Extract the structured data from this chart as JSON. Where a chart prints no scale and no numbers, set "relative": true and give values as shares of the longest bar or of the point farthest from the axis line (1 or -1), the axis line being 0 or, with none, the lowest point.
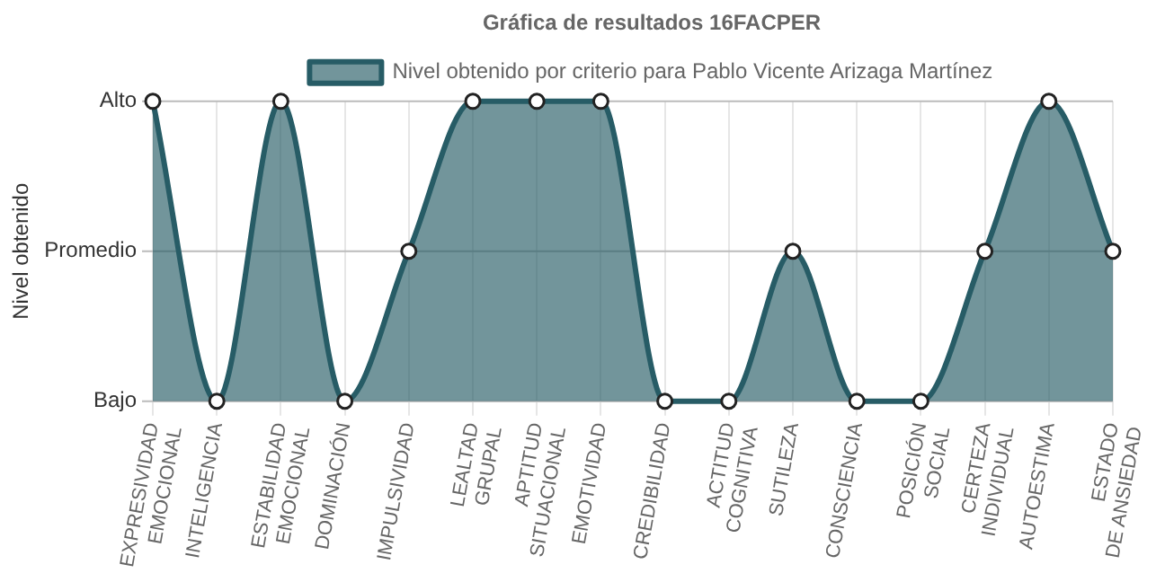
{
  "chart_data": {
    "type": "area",
    "title": "Gráfica de resultados 16FACPER",
    "ylabel": "Nivel obtenido",
    "categories": [
      "EXPRESIVIDAD EMOCIONAL",
      "INTELIGENCIA",
      "ESTABILIDAD EMOCIONAL",
      "DOMINACIÓN",
      "IMPULSIVIDAD",
      "LEALTAD GRUPAL",
      "APTITUD SITUACIONAL",
      "EMOTIVIDAD",
      "CREDIBILIDAD",
      "ACTITUD COGNITIVA",
      "SUTILEZA",
      "CONSCIENCIA",
      "POSICIÓN SOCIAL",
      "CERTEZA INDIVIDUAL",
      "AUTOESTIMA",
      "ESTADO DE ANSIEDAD"
    ],
    "series": [
      {
        "name": "Nivel obtenido por criterio para Pablo Vicente Arizaga Martínez",
        "color": "#275c66",
        "values": [
          1,
          0,
          1,
          0,
          0.5,
          1,
          1,
          1,
          0,
          0,
          0.5,
          0,
          0,
          0.5,
          1,
          0.5
        ]
      }
    ],
    "relative": true,
    "ref_lines": [
      {
        "axis": "y",
        "value": 0,
        "label": "Bajo",
        "color": "#bbbbbb"
      },
      {
        "axis": "y",
        "value": 0.5,
        "label": "Promedio",
        "color": "#bbbbbb"
      },
      {
        "axis": "y",
        "value": 1,
        "label": "Alto",
        "color": "#bbbbbb"
      }
    ],
    "grid": "x",
    "legend": "top",
    "marker": "circle"
  }
}
